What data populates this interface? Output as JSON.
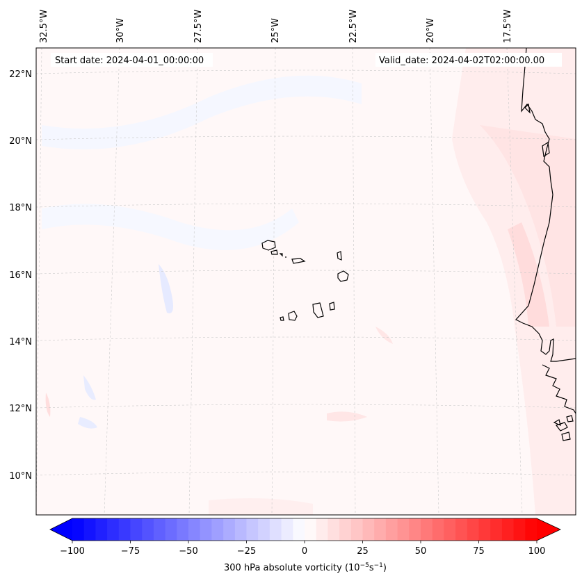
{
  "header": {
    "start_date": "Start date: 2024-04-01_00:00:00",
    "valid_date": "Valid_date: 2024-04-02T02:00:00.00"
  },
  "map": {
    "variable": "300 hPa absolute vorticity",
    "longitude_labels": [
      "32.5°W",
      "30°W",
      "27.5°W",
      "25°W",
      "22.5°W",
      "20°W",
      "17.5°W"
    ],
    "latitude_labels": [
      "22°N",
      "20°N",
      "18°N",
      "16°N",
      "14°N",
      "12°N",
      "10°N"
    ]
  },
  "colorbar": {
    "label_prefix": "300 hPa absolute vorticity (10",
    "label_exp1": "−5",
    "label_mid": "s",
    "label_exp2": "−1",
    "label_suffix": ")",
    "min": -100,
    "max": 100,
    "ticks": [
      "−100",
      "−75",
      "−50",
      "−25",
      "0",
      "25",
      "50",
      "75",
      "100"
    ],
    "low_color": "#0000ff",
    "mid_color": "#ffffff",
    "high_color": "#ff0000"
  }
}
